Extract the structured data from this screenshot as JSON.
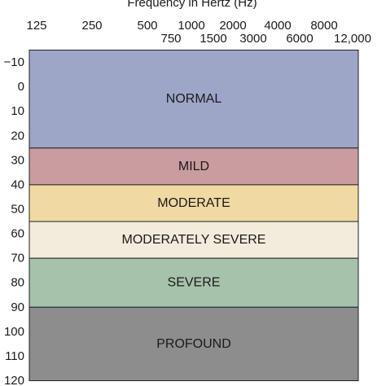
{
  "chart_data": {
    "type": "bar",
    "title": "Frequency in Hertz (Hz)",
    "x_tick_labels_row1": [
      "125",
      "250",
      "500",
      "1000",
      "2000",
      "4000",
      "8000"
    ],
    "x_tick_labels_row2": [
      "750",
      "1500",
      "3000",
      "6000",
      "12,000"
    ],
    "y_tick_labels": [
      "−10",
      "0",
      "10",
      "20",
      "30",
      "40",
      "50",
      "60",
      "70",
      "80",
      "90",
      "100",
      "110",
      "120"
    ],
    "ylim": [
      -15,
      120
    ],
    "y_inverted": true,
    "grid": false,
    "bands": [
      {
        "label": "NORMAL",
        "from": -15,
        "to": 25,
        "color": "#9ea6c8"
      },
      {
        "label": "MILD",
        "from": 25,
        "to": 40,
        "color": "#c99da0"
      },
      {
        "label": "MODERATE",
        "from": 40,
        "to": 55,
        "color": "#f0d9a2"
      },
      {
        "label": "MODERATELY SEVERE",
        "from": 55,
        "to": 70,
        "color": "#f3ebdc"
      },
      {
        "label": "SEVERE",
        "from": 70,
        "to": 90,
        "color": "#a7c2ab"
      },
      {
        "label": "PROFOUND",
        "from": 90,
        "to": 120,
        "color": "#8d8d8d"
      }
    ]
  }
}
